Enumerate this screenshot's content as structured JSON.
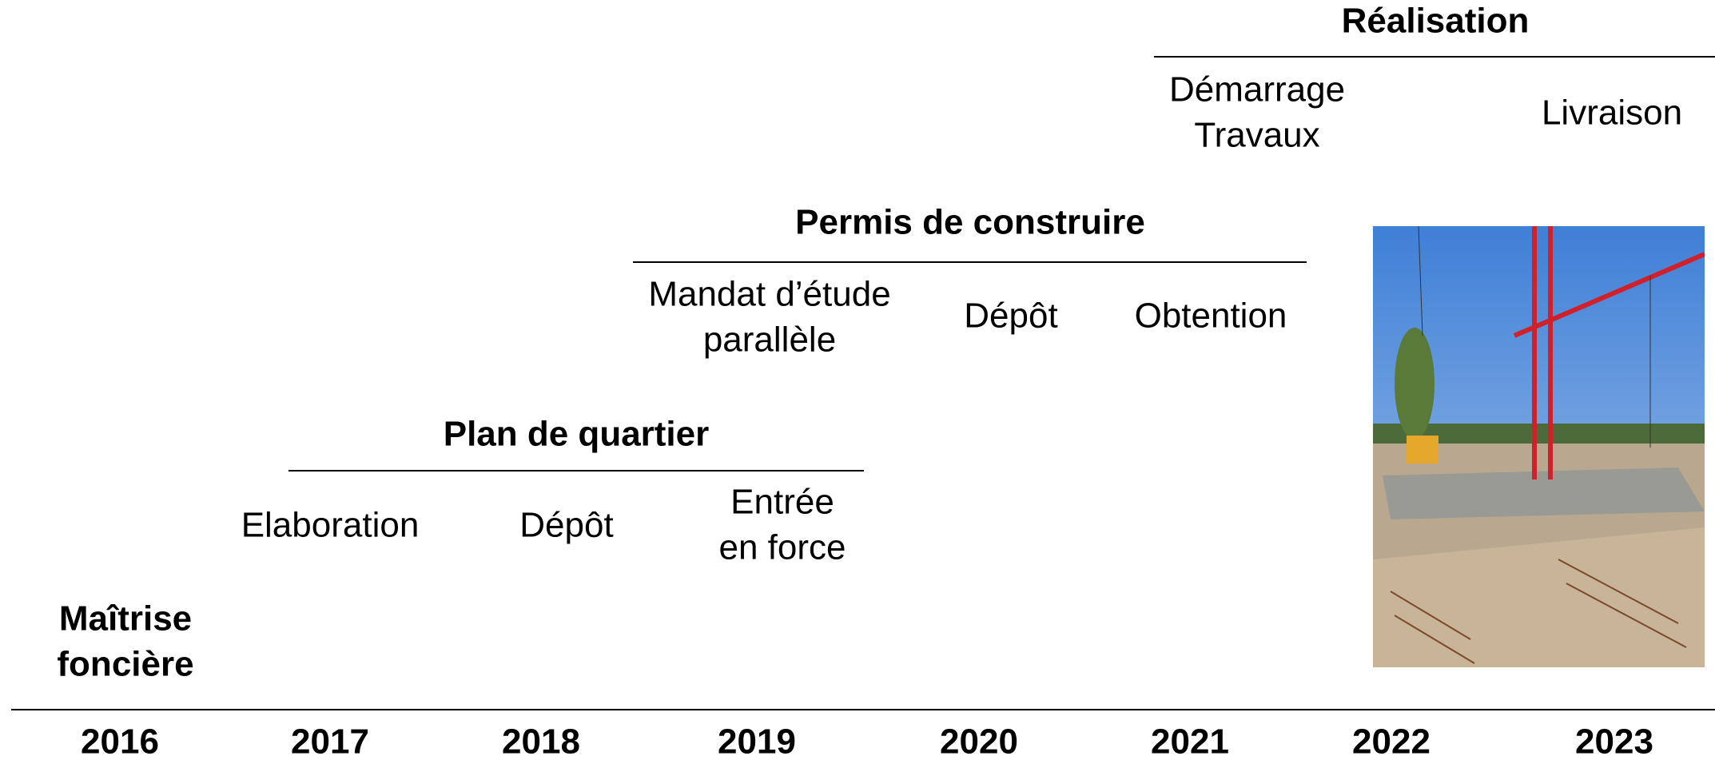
{
  "years": [
    "2016",
    "2017",
    "2018",
    "2019",
    "2020",
    "2021",
    "2022",
    "2023"
  ],
  "land": [
    "Maîtrise",
    "foncière"
  ],
  "phases": [
    {
      "title": "Plan de quartier",
      "steps": [
        [
          "Elaboration"
        ],
        [
          "Dépôt"
        ],
        [
          "Entrée",
          "en force"
        ]
      ]
    },
    {
      "title": "Permis de construire",
      "steps": [
        [
          "Mandat d’étude",
          "parallèle"
        ],
        [
          "Dépôt"
        ],
        [
          "Obtention"
        ]
      ]
    },
    {
      "title": "Réalisation",
      "steps": [
        [
          "Démarrage",
          "Travaux"
        ],
        [
          "Livraison"
        ]
      ]
    }
  ]
}
